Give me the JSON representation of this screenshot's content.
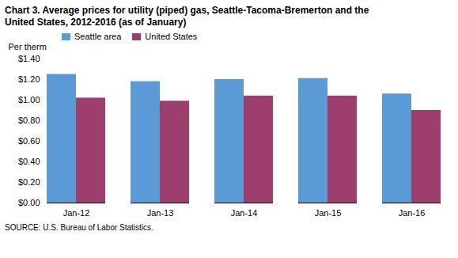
{
  "chart_data": {
    "type": "bar",
    "title": "Chart 3. Average prices for utility (piped) gas, Seattle-Tacoma-Bremerton and the",
    "subtitle": "United States, 2012-2016  (as of January)",
    "ylabel": "Per therm",
    "annotations": [
      "SOURCE: U.S. Bureau of Labor Statistics."
    ],
    "categories": [
      "Jan-12",
      "Jan-13",
      "Jan-14",
      "Jan-15",
      "Jan-16"
    ],
    "series": [
      {
        "name": "Seattle area",
        "color": "#5b9bd5",
        "values": [
          1.25,
          1.18,
          1.2,
          1.21,
          1.06
        ]
      },
      {
        "name": "United States",
        "color": "#9e3e6e",
        "values": [
          1.02,
          0.99,
          1.04,
          1.04,
          0.9
        ]
      }
    ],
    "ylim": [
      0.0,
      1.4
    ],
    "yticks": [
      {
        "value": 0.0,
        "label": "$0.00"
      },
      {
        "value": 0.2,
        "label": "$0.20"
      },
      {
        "value": 0.4,
        "label": "$0.40"
      },
      {
        "value": 0.6,
        "label": "$0.60"
      },
      {
        "value": 0.8,
        "label": "$0.80"
      },
      {
        "value": 1.0,
        "label": "$1.00"
      },
      {
        "value": 1.2,
        "label": "$1.20"
      },
      {
        "value": 1.4,
        "label": "$1.40"
      }
    ],
    "grid": false,
    "legend": "upper left"
  }
}
